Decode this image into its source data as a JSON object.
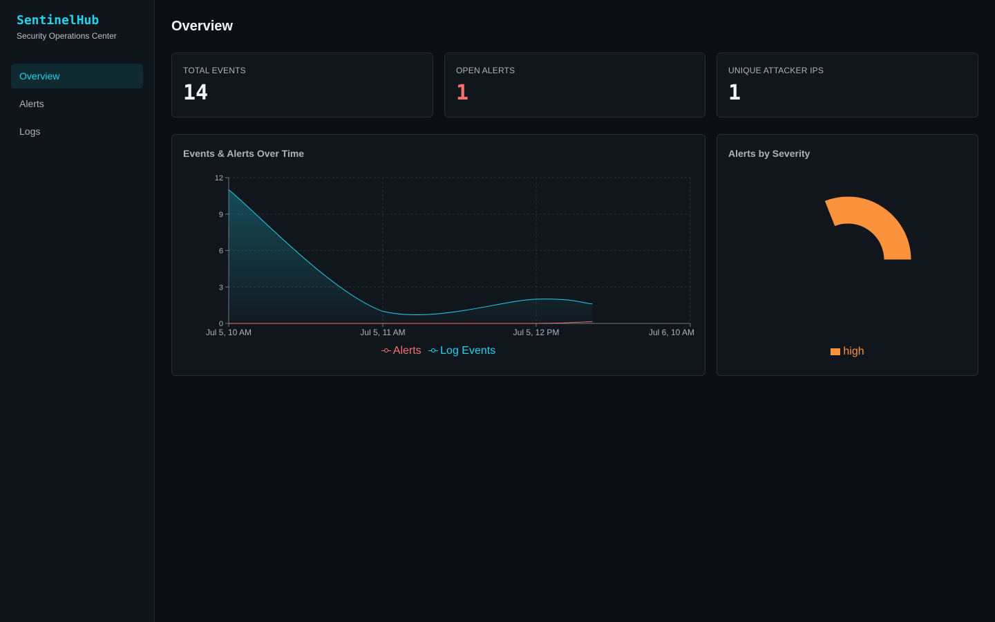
{
  "app": {
    "name": "SentinelHub",
    "subtitle": "Security Operations Center"
  },
  "nav": {
    "items": [
      {
        "label": "Overview",
        "active": true
      },
      {
        "label": "Alerts",
        "active": false
      },
      {
        "label": "Logs",
        "active": false
      }
    ]
  },
  "page": {
    "title": "Overview"
  },
  "stats": [
    {
      "label": "TOTAL EVENTS",
      "value": "14"
    },
    {
      "label": "OPEN ALERTS",
      "value": "1"
    },
    {
      "label": "UNIQUE ATTACKER IPS",
      "value": "1"
    }
  ],
  "colors": {
    "accent": "#22d3ee",
    "alerts": "#f87171",
    "events": "#22d3ee",
    "high": "#fb923c"
  },
  "panels": {
    "timeline_title": "Events & Alerts Over Time",
    "severity_title": "Alerts by Severity"
  },
  "chart_data": [
    {
      "type": "line",
      "title": "Events & Alerts Over Time",
      "x_ticks": [
        "Jul 5, 10 AM",
        "Jul 5, 11 AM",
        "Jul 5, 12 PM",
        "Jul 6, 10 AM"
      ],
      "y_ticks": [
        "0",
        "3",
        "6",
        "9",
        "12"
      ],
      "ylim": [
        0,
        12
      ],
      "grid": true,
      "legend": "bottom",
      "series": [
        {
          "name": "Alerts",
          "color": "#f87171",
          "points": [
            [
              "Jul 5, 10 AM",
              0
            ],
            [
              "Jul 5, 11 AM",
              0
            ],
            [
              "Jul 5, 12 PM",
              0
            ],
            [
              "Jul 5, 12:22 PM",
              0.15
            ]
          ]
        },
        {
          "name": "Log Events",
          "color": "#22d3ee",
          "area": true,
          "points": [
            [
              "Jul 5, 10 AM",
              11
            ],
            [
              "Jul 5, 11 AM",
              1
            ],
            [
              "Jul 5, 12 PM",
              2
            ],
            [
              "Jul 5, 12:22 PM",
              1.6
            ]
          ]
        }
      ]
    },
    {
      "type": "pie",
      "title": "Alerts by Severity",
      "legend": "bottom",
      "slices": [
        {
          "name": "high",
          "value": 1,
          "color": "#fb923c"
        }
      ]
    }
  ]
}
